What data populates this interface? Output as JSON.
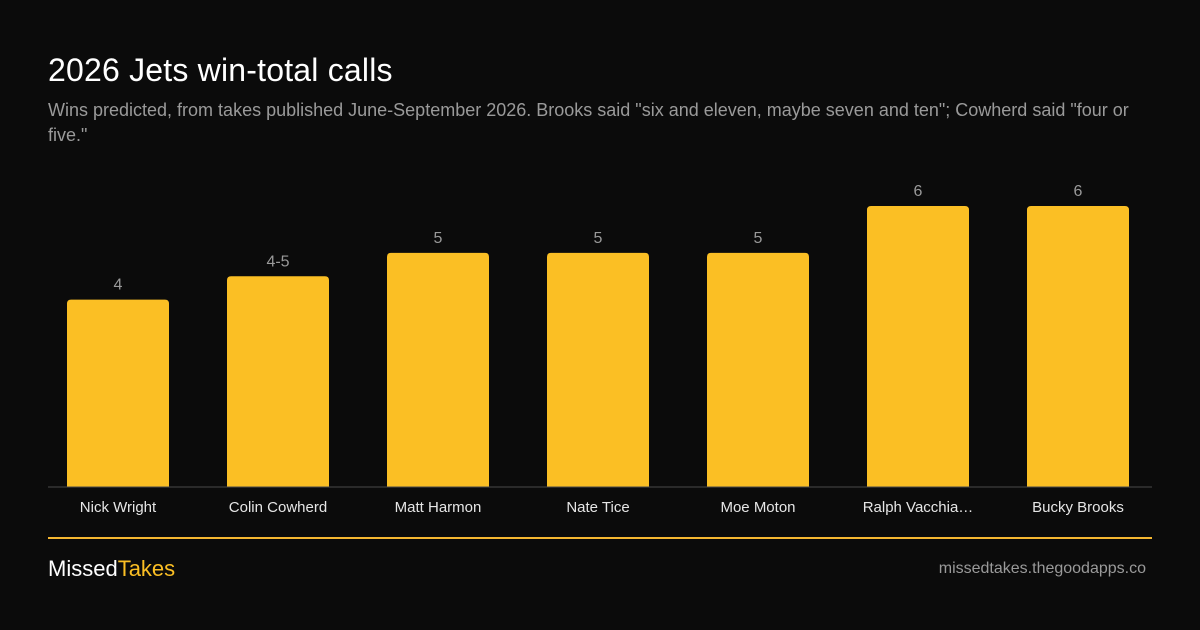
{
  "title": "2026 Jets win-total calls",
  "subtitle": "Wins predicted, from takes published June-September 2026. Brooks said \"six and eleven, maybe seven and ten\"; Cowherd said \"four or five.\"",
  "colors": {
    "background": "#0b0b0b",
    "bar": "#fbbf24",
    "accent": "#f5b731",
    "axis": "#4a4a4a",
    "muted_text": "#9a9a9a"
  },
  "chart_data": {
    "type": "bar",
    "title": "2026 Jets win-total calls",
    "xlabel": "",
    "ylabel": "",
    "categories": [
      "Nick Wright",
      "Colin Cowherd",
      "Matt Harmon",
      "Nate Tice",
      "Moe Moton",
      "Ralph Vacchia…",
      "Bucky Brooks"
    ],
    "values": [
      4,
      4.5,
      5,
      5,
      5,
      6,
      6
    ],
    "data_labels": [
      "4",
      "4-5",
      "5",
      "5",
      "5",
      "6",
      "6"
    ],
    "ylim": [
      0,
      6
    ],
    "grid": false,
    "legend": "none"
  },
  "footer": {
    "brand_a": "Missed",
    "brand_b": "Takes",
    "url": "missedtakes.thegoodapps.co"
  }
}
